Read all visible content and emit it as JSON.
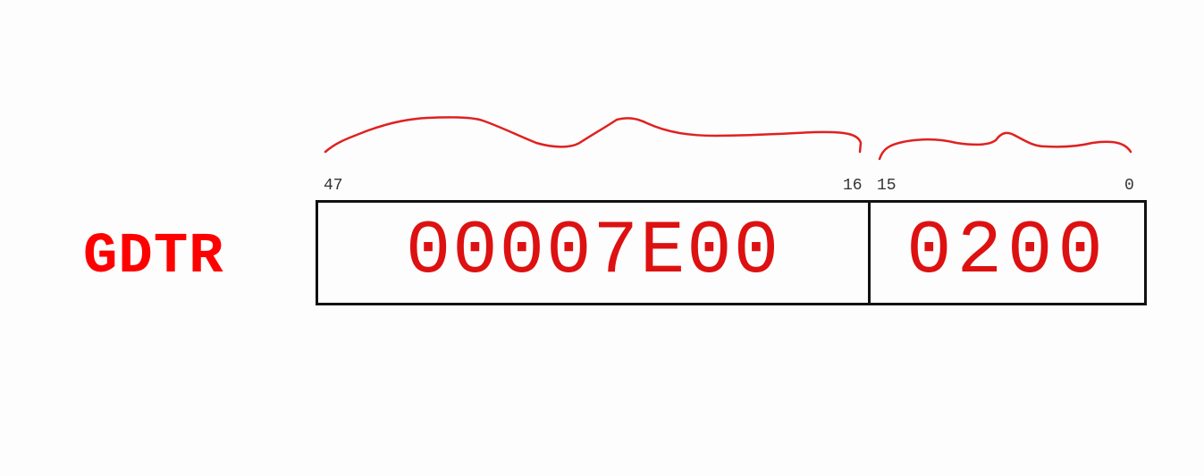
{
  "register": {
    "name": "GDTR"
  },
  "bits": {
    "base_high": "47",
    "base_low": "16",
    "limit_high": "15",
    "limit_low": "0"
  },
  "fields": {
    "base_value": "00007E00",
    "limit_value": "0200"
  },
  "colors": {
    "accent": "#ff0000",
    "value_text": "#dd1111",
    "border": "#111111",
    "bit_label": "#333333"
  }
}
